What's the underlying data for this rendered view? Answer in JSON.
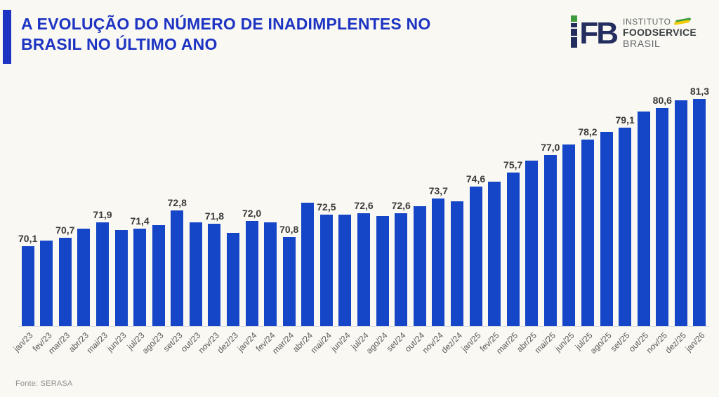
{
  "header": {
    "title_line1": "A EVOLUÇÃO DO NÚMERO DE INADIMPLENTES NO",
    "title_line2": "BRASIL NO ÚLTIMO ANO",
    "title_color": "#1D34C3"
  },
  "logo": {
    "monogram": "FB",
    "line1": "INSTITUTO",
    "line2": "FOODSERVICE",
    "line3": "BRASIL",
    "navy": "#232D5E",
    "green": "#3E9C3C",
    "yellow": "#F2CC0C"
  },
  "footer": {
    "source": "Fonte: SERASA"
  },
  "chart_data": {
    "type": "bar",
    "title": "A evolução do número de inadimplentes no Brasil no último ano",
    "xlabel": "",
    "ylabel": "",
    "categories": [
      "jan/23",
      "fev/23",
      "mar/23",
      "abr/23",
      "mai/23",
      "jun/23",
      "jul/23",
      "ago/23",
      "set/23",
      "out/23",
      "nov/23",
      "dez/23",
      "jan/24",
      "fev/24",
      "mar/24",
      "abr/24",
      "mai/24",
      "jun/24",
      "jul/24",
      "ago/24",
      "set/24",
      "out/24",
      "nov/24",
      "dez/24",
      "jan/25",
      "fev/25",
      "mar/25",
      "abr/25",
      "mai/25",
      "jun/25",
      "jul/25",
      "ago/25",
      "set/25",
      "out/25",
      "nov/25",
      "dez/25",
      "jan/26"
    ],
    "values": [
      70.1,
      70.5,
      70.7,
      71.4,
      71.9,
      71.3,
      71.4,
      71.7,
      72.8,
      71.9,
      71.8,
      71.1,
      72.0,
      71.9,
      70.8,
      73.4,
      72.5,
      72.5,
      72.6,
      72.4,
      72.6,
      73.1,
      73.7,
      73.5,
      74.6,
      75.0,
      75.7,
      76.6,
      77.0,
      77.8,
      78.2,
      78.8,
      79.1,
      80.3,
      80.6,
      81.2,
      81.3
    ],
    "labeled_values": {
      "jan/23": "70,1",
      "mar/23": "70,7",
      "mai/23": "71,9",
      "jul/23": "71,4",
      "set/23": "72,8",
      "nov/23": "71,8",
      "jan/24": "72,0",
      "mar/24": "70,8",
      "mai/24": "72,5",
      "jul/24": "72,6",
      "set/24": "72,6",
      "nov/24": "73,7",
      "jan/25": "74,6",
      "mar/25": "75,7",
      "mai/25": "77,0",
      "jul/25": "78,2",
      "set/25": "79,1",
      "nov/25": "80,6",
      "jan/26": "81,3"
    },
    "show_label_every": 2,
    "decimal_separator": ",",
    "ylim": [
      64,
      83
    ],
    "grid": false,
    "legend": false,
    "bar_color": "#1646C8",
    "value_label_color": "#3B3B3B",
    "axis_label_color": "#595959"
  }
}
